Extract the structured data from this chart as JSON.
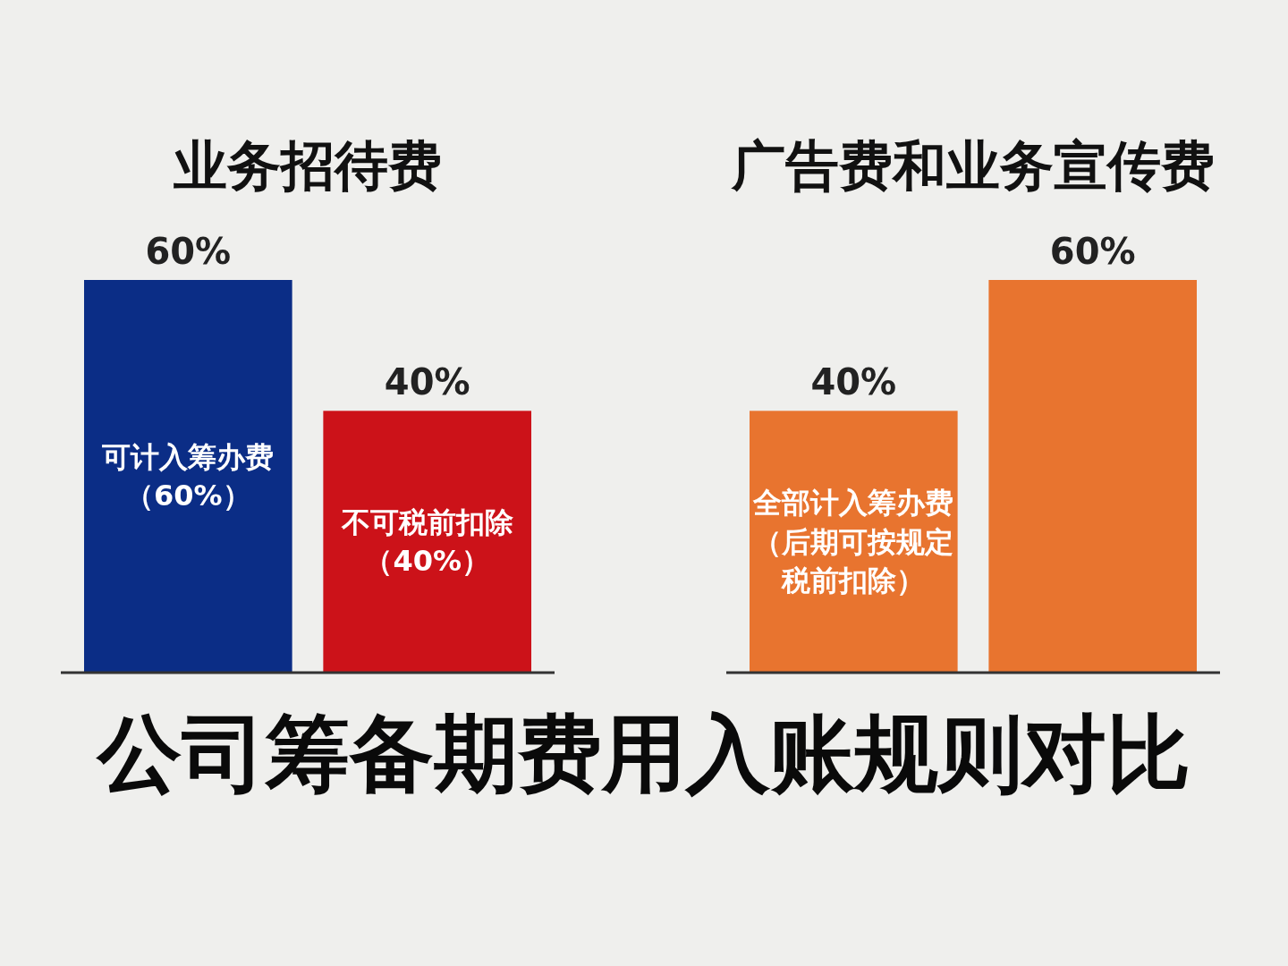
{
  "chart_data": [
    {
      "type": "bar",
      "title": "业务招待费",
      "categories": [
        "可计入筹办费（60%）",
        "不可税前扣除（40%）"
      ],
      "values": [
        60,
        40
      ],
      "colors": [
        "#0b2d86",
        "#cc1219"
      ],
      "value_labels": [
        "60%",
        "40%"
      ]
    },
    {
      "type": "bar",
      "title": "广告费和业务宣传费",
      "categories": [
        "全部计入筹办费（后期可按规定税前扣除）",
        null
      ],
      "values": [
        40,
        60
      ],
      "colors": [
        "#e8742f",
        "#e8742f"
      ],
      "value_labels": [
        "40%",
        "60%"
      ]
    },
    {
      "type": "other",
      "title": "公司筹备期费用入账规则对比"
    }
  ]
}
